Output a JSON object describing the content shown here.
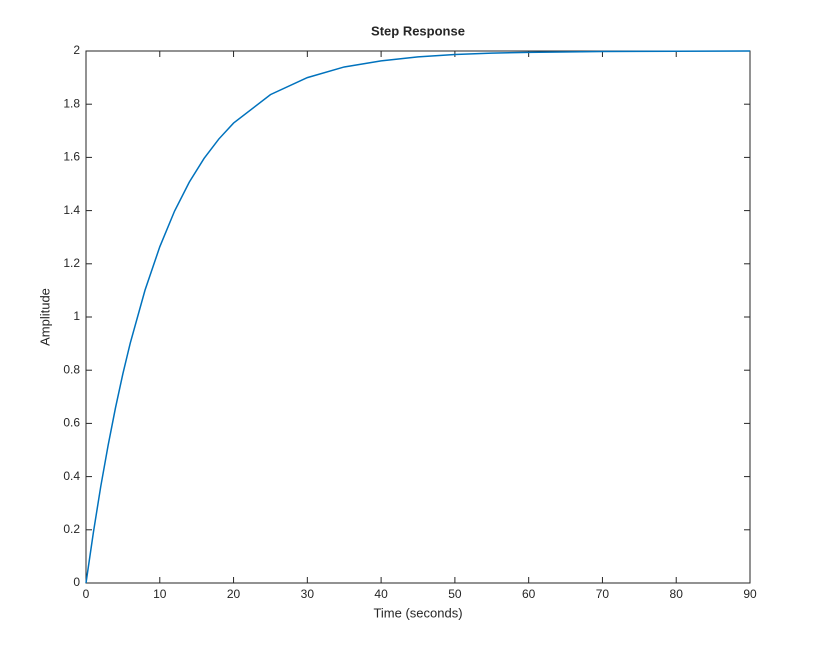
{
  "chart_data": {
    "type": "line",
    "title": "Step Response",
    "x_label": "Time (seconds)",
    "y_label": "Amplitude",
    "x": [
      0,
      1,
      2,
      3,
      4,
      5,
      6,
      8,
      10,
      12,
      14,
      16,
      18,
      20,
      25,
      30,
      35,
      40,
      45,
      50,
      55,
      60,
      70,
      80,
      90
    ],
    "series": [
      {
        "color": "#0072bd",
        "values": [
          0,
          0.19,
          0.363,
          0.518,
          0.659,
          0.787,
          0.902,
          1.101,
          1.264,
          1.398,
          1.507,
          1.596,
          1.669,
          1.729,
          1.836,
          1.9,
          1.94,
          1.963,
          1.978,
          1.987,
          1.992,
          1.995,
          1.998,
          1.999,
          2.0
        ]
      }
    ],
    "steady_state": 2,
    "xlim": [
      0,
      90
    ],
    "xticks": [
      0,
      10,
      20,
      30,
      40,
      50,
      60,
      70,
      80,
      90
    ],
    "ylim": [
      0,
      2
    ],
    "yticks": [
      0,
      0.2,
      0.4,
      0.6,
      0.8,
      1,
      1.2,
      1.4,
      1.6,
      1.8,
      2
    ],
    "grid": false
  }
}
